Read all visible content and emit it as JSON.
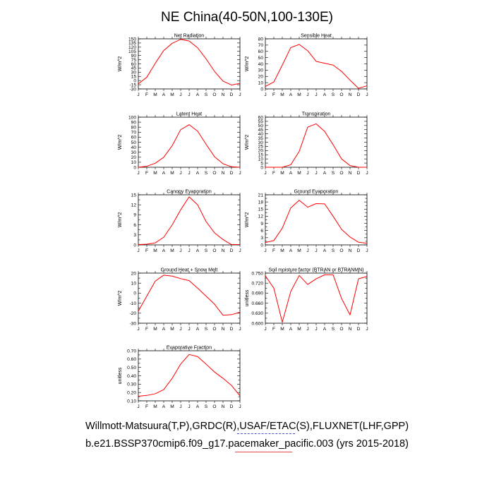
{
  "title": "NE China(40-50N,100-130E)",
  "captions": {
    "line1": "Willmott-Matsuura(T,P),GRDC(R),USAF/ETAC(S),FLUXNET(LHF,GPP)",
    "line2": "b.e21.BSSP370cmip6.f09_g17.pacemaker_pacific.003 (yrs 2015-2018)"
  },
  "colors": {
    "series": "#ff0000",
    "axis": "#000000",
    "spell_underline_1": "#4a52c8",
    "spell_underline_2": "#e04848"
  },
  "chart_data": [
    {
      "type": "line",
      "title": "Net Radiation",
      "ylabel": "W/m^2",
      "categories": [
        "J",
        "F",
        "M",
        "A",
        "M",
        "J",
        "J",
        "A",
        "S",
        "O",
        "N",
        "D",
        "J"
      ],
      "ylim": [
        -30,
        150
      ],
      "yticks": [
        -30,
        -15,
        0,
        15,
        30,
        45,
        60,
        75,
        90,
        105,
        120,
        135,
        150
      ],
      "ytick_labels": [
        "-30",
        "-15",
        "0",
        "15",
        "30",
        "45",
        "60",
        "75",
        "90",
        "105",
        "120",
        "135",
        "150"
      ],
      "values": [
        -12,
        12,
        62,
        108,
        134,
        148,
        142,
        118,
        78,
        33,
        -2,
        -16,
        -10
      ]
    },
    {
      "type": "line",
      "title": "Sensible Heat",
      "ylabel": "W/m^2",
      "categories": [
        "J",
        "F",
        "M",
        "A",
        "M",
        "J",
        "J",
        "A",
        "S",
        "O",
        "N",
        "D",
        "J"
      ],
      "ylim": [
        0,
        80
      ],
      "yticks": [
        0,
        10,
        20,
        30,
        40,
        50,
        60,
        70,
        80
      ],
      "ytick_labels": [
        "0",
        "10",
        "20",
        "30",
        "40",
        "50",
        "60",
        "70",
        "80"
      ],
      "values": [
        4,
        11,
        38,
        66,
        71,
        61,
        44,
        41,
        38,
        28,
        14,
        1,
        5
      ]
    },
    {
      "type": "line",
      "title": "Latent Heat",
      "ylabel": "W/m^2",
      "categories": [
        "J",
        "F",
        "M",
        "A",
        "M",
        "J",
        "J",
        "A",
        "S",
        "O",
        "N",
        "D",
        "J"
      ],
      "ylim": [
        0,
        100
      ],
      "yticks": [
        0,
        10,
        20,
        30,
        40,
        50,
        60,
        70,
        80,
        90,
        100
      ],
      "ytick_labels": [
        "0",
        "10",
        "20",
        "30",
        "40",
        "50",
        "60",
        "70",
        "80",
        "90",
        "100"
      ],
      "values": [
        0,
        2,
        8,
        20,
        43,
        75,
        85,
        72,
        46,
        21,
        7,
        1,
        0
      ]
    },
    {
      "type": "line",
      "title": "Transpiration",
      "ylabel": "W/m^2",
      "categories": [
        "J",
        "F",
        "M",
        "A",
        "M",
        "J",
        "J",
        "A",
        "S",
        "O",
        "N",
        "D",
        "J"
      ],
      "ylim": [
        0,
        60
      ],
      "yticks": [
        0,
        5,
        10,
        15,
        20,
        25,
        30,
        35,
        40,
        45,
        50,
        55,
        60
      ],
      "ytick_labels": [
        "0",
        "5",
        "10",
        "15",
        "20",
        "25",
        "30",
        "35",
        "40",
        "45",
        "50",
        "55",
        "60"
      ],
      "values": [
        0,
        0,
        0,
        3,
        19,
        48,
        52,
        43,
        27,
        10,
        2,
        0,
        0
      ]
    },
    {
      "type": "line",
      "title": "Canopy Evaporation",
      "ylabel": "W/m^2",
      "categories": [
        "J",
        "F",
        "M",
        "A",
        "M",
        "J",
        "J",
        "A",
        "S",
        "O",
        "N",
        "D",
        "J"
      ],
      "ylim": [
        0,
        15
      ],
      "yticks": [
        0,
        1.5,
        3,
        4.5,
        6,
        7.5,
        9,
        10.5,
        12,
        13.5,
        15
      ],
      "ytick_labels": [
        "0",
        "",
        "3",
        "",
        "6",
        "",
        "9",
        "",
        "12",
        "",
        "15"
      ],
      "values": [
        0.1,
        0.2,
        0.6,
        2.3,
        6,
        10.5,
        14.4,
        12,
        7,
        3.6,
        1.6,
        0.1,
        0.1
      ]
    },
    {
      "type": "line",
      "title": "Ground Evaporation",
      "ylabel": "W/m^2",
      "categories": [
        "J",
        "F",
        "M",
        "A",
        "M",
        "J",
        "J",
        "A",
        "S",
        "O",
        "N",
        "D",
        "J"
      ],
      "ylim": [
        0,
        21
      ],
      "yticks": [
        0,
        1.5,
        3,
        4.5,
        6,
        7.5,
        9,
        10.5,
        12,
        13.5,
        15,
        16.5,
        18,
        19.5,
        21
      ],
      "ytick_labels": [
        "0",
        "",
        "3",
        "",
        "6",
        "",
        "9",
        "",
        "12",
        "",
        "15",
        "",
        "18",
        "",
        "21"
      ],
      "values": [
        1,
        1.8,
        7,
        15.5,
        18.7,
        15.8,
        17.3,
        17.2,
        12,
        6.5,
        3.3,
        1.1,
        0.7
      ]
    },
    {
      "type": "line",
      "title": "Ground Heat + Snow Melt",
      "ylabel": "W/m^2",
      "categories": [
        "J",
        "F",
        "M",
        "A",
        "M",
        "J",
        "J",
        "A",
        "S",
        "O",
        "N",
        "D",
        "J"
      ],
      "ylim": [
        -30,
        20
      ],
      "yticks": [
        -30,
        -25,
        -20,
        -15,
        -10,
        -5,
        0,
        5,
        10,
        15,
        20
      ],
      "ytick_labels": [
        "-30",
        "",
        "-20",
        "",
        "-10",
        "",
        "0",
        "",
        "10",
        "",
        "20"
      ],
      "values": [
        -18,
        -3,
        12,
        18,
        17,
        14.5,
        12.5,
        5,
        -3,
        -11,
        -22,
        -21.5,
        -19
      ]
    },
    {
      "type": "line",
      "title": "Soil moisture factor (BTRAN or BTRANMN)",
      "ylabel": "unitless",
      "categories": [
        "J",
        "F",
        "M",
        "A",
        "M",
        "J",
        "J",
        "A",
        "S",
        "O",
        "N",
        "D",
        "J"
      ],
      "ylim": [
        0.6,
        0.75
      ],
      "yticks": [
        0.6,
        0.615,
        0.63,
        0.645,
        0.66,
        0.675,
        0.69,
        0.705,
        0.72,
        0.735,
        0.75
      ],
      "ytick_labels": [
        "0.600",
        "",
        "0.630",
        "",
        "0.660",
        "",
        "0.690",
        "",
        "0.720",
        "",
        "0.750"
      ],
      "values": [
        0.742,
        0.705,
        0.603,
        0.695,
        0.743,
        0.716,
        0.733,
        0.745,
        0.745,
        0.674,
        0.625,
        0.733,
        0.74
      ]
    },
    {
      "type": "line",
      "title": "Evaporative Fraction",
      "ylabel": "unitless",
      "categories": [
        "J",
        "F",
        "M",
        "A",
        "M",
        "J",
        "J",
        "A",
        "S",
        "O",
        "N",
        "D",
        "J"
      ],
      "ylim": [
        0.1,
        0.7
      ],
      "yticks": [
        0.1,
        0.15,
        0.2,
        0.25,
        0.3,
        0.35,
        0.4,
        0.45,
        0.5,
        0.55,
        0.6,
        0.65,
        0.7
      ],
      "ytick_labels": [
        "0.10",
        "",
        "0.20",
        "",
        "0.30",
        "",
        "0.40",
        "",
        "0.50",
        "",
        "0.60",
        "",
        "0.70"
      ],
      "values": [
        0.155,
        0.165,
        0.185,
        0.235,
        0.37,
        0.54,
        0.655,
        0.63,
        0.54,
        0.445,
        0.37,
        0.285,
        0.16
      ]
    }
  ]
}
